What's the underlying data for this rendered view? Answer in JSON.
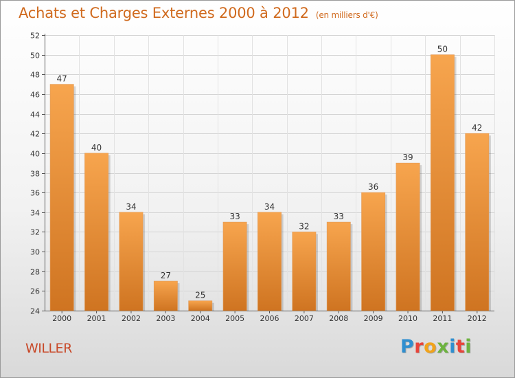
{
  "chart_data": {
    "type": "bar",
    "title": "Achats et Charges Externes 2000 à 2012",
    "subtitle": "(en milliers d'€)",
    "categories": [
      "2000",
      "2001",
      "2002",
      "2003",
      "2004",
      "2005",
      "2006",
      "2007",
      "2008",
      "2009",
      "2010",
      "2011",
      "2012"
    ],
    "values": [
      47,
      40,
      34,
      27,
      25,
      33,
      34,
      32,
      33,
      36,
      39,
      50,
      42
    ],
    "xlabel": "",
    "ylabel": "",
    "ylim": [
      24,
      52
    ],
    "yticks": [
      24,
      26,
      28,
      30,
      32,
      34,
      36,
      38,
      40,
      42,
      44,
      46,
      48,
      50,
      52
    ],
    "grid": true,
    "legend": "none",
    "bar_color_top": "#f7a54e",
    "bar_color_bottom": "#cf7421"
  },
  "footer": {
    "place": "WILLER",
    "logo_text": "Proxiti",
    "logo_colors": [
      "#2f8fd0",
      "#e8443a",
      "#f1a31b",
      "#6db33f",
      "#2f8fd0",
      "#e8443a",
      "#6db33f"
    ]
  }
}
